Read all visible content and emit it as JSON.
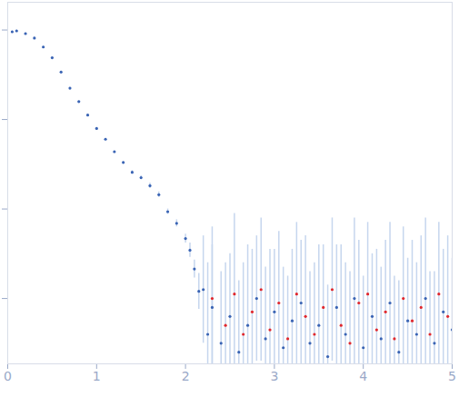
{
  "chart_data": {
    "type": "scatter",
    "xlim": [
      0,
      5
    ],
    "xticks": [
      0,
      1,
      2,
      3,
      4,
      5
    ],
    "ylim": [
      0.27,
      4.31
    ],
    "yticks": [
      1,
      2,
      3,
      4
    ],
    "tick_labels": "x",
    "series": [
      {
        "color": "#3a64b4",
        "marker": "dot",
        "x": [
          0.05,
          0.1,
          0.2,
          0.3,
          0.4,
          0.5,
          0.6,
          0.7,
          0.8,
          0.9,
          1.0,
          1.1,
          1.2,
          1.3,
          1.4,
          1.5,
          1.6,
          1.7,
          1.8,
          1.9,
          2.0,
          2.05,
          2.1,
          2.15,
          2.2,
          2.25,
          2.3,
          2.4,
          2.5,
          2.6,
          2.7,
          2.8,
          2.9,
          3.0,
          3.1,
          3.2,
          3.3,
          3.4,
          3.5,
          3.6,
          3.7,
          3.8,
          3.9,
          4.0,
          4.1,
          4.2,
          4.3,
          4.4,
          4.5,
          4.6,
          4.7,
          4.8,
          4.9,
          5.0
        ],
        "values": [
          3.98,
          3.99,
          3.96,
          3.91,
          3.81,
          3.69,
          3.53,
          3.35,
          3.2,
          3.05,
          2.9,
          2.78,
          2.64,
          2.52,
          2.41,
          2.35,
          2.26,
          2.16,
          1.97,
          1.84,
          1.67,
          1.54,
          1.33,
          1.08,
          1.1,
          0.6,
          0.9,
          0.5,
          0.8,
          0.4,
          0.7,
          1.0,
          0.55,
          0.85,
          0.45,
          0.75,
          0.95,
          0.5,
          0.7,
          0.35,
          0.9,
          0.6,
          1.0,
          0.45,
          0.8,
          0.55,
          0.95,
          0.4,
          0.75,
          0.6,
          1.0,
          0.5,
          0.85,
          0.65
        ],
        "errors": [
          0.01,
          0.01,
          0.01,
          0.01,
          0.01,
          0.01,
          0.01,
          0.01,
          0.01,
          0.01,
          0.01,
          0.01,
          0.01,
          0.01,
          0.02,
          0.02,
          0.03,
          0.03,
          0.03,
          0.04,
          0.05,
          0.08,
          0.1,
          0.2,
          0.6,
          0.8,
          0.7,
          0.8,
          0.7,
          0.8,
          0.9,
          0.7,
          0.8,
          0.7,
          0.9,
          0.8,
          0.7,
          0.8,
          0.9,
          0.8,
          0.7,
          0.8,
          0.9,
          0.8,
          0.7,
          0.8,
          0.9,
          0.8,
          0.7,
          0.8,
          0.9,
          0.8,
          0.7,
          0.8
        ]
      },
      {
        "color": "#e0282e",
        "marker": "dot",
        "x": [
          2.3,
          2.45,
          2.55,
          2.65,
          2.75,
          2.85,
          2.95,
          3.05,
          3.15,
          3.25,
          3.35,
          3.45,
          3.55,
          3.65,
          3.75,
          3.85,
          3.95,
          4.05,
          4.15,
          4.25,
          4.35,
          4.45,
          4.55,
          4.65,
          4.75,
          4.85,
          4.95
        ],
        "values": [
          1.0,
          0.7,
          1.05,
          0.6,
          0.85,
          1.1,
          0.65,
          0.95,
          0.55,
          1.05,
          0.8,
          0.6,
          0.9,
          1.1,
          0.7,
          0.5,
          0.95,
          1.05,
          0.65,
          0.85,
          0.55,
          1.0,
          0.75,
          0.9,
          0.6,
          1.05,
          0.8
        ],
        "errors": [
          0.8,
          0.7,
          0.9,
          0.8,
          0.7,
          0.8,
          0.9,
          0.8,
          0.7,
          0.8,
          0.9,
          0.8,
          0.7,
          0.8,
          0.9,
          0.8,
          0.7,
          0.8,
          0.9,
          0.8,
          0.7,
          0.8,
          0.9,
          0.8,
          0.7,
          0.8,
          0.9
        ]
      }
    ]
  }
}
